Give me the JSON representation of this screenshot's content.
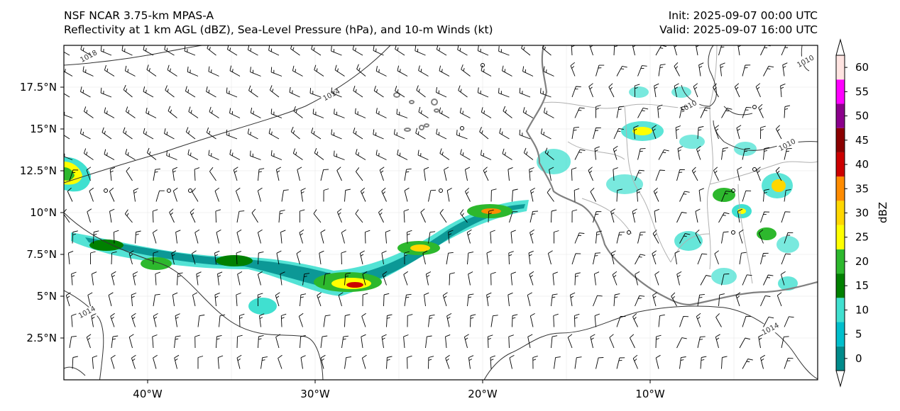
{
  "header": {
    "model_line": "NSF NCAR 3.75-km MPAS-A",
    "fields_line": "Reflectivity at 1 km AGL (dBZ), Sea-Level Pressure (hPa), and 10-m Winds (kt)",
    "init_line": "Init: 2025-09-07 00:00 UTC",
    "valid_line": "Valid: 2025-09-07 16:00 UTC"
  },
  "map": {
    "lon_labels": [
      "40°W",
      "30°W",
      "20°W",
      "10°W"
    ],
    "lat_labels": [
      "17.5°N",
      "15°N",
      "12.5°N",
      "10°N",
      "7.5°N",
      "5°N",
      "2.5°N"
    ],
    "lon_values": [
      -40,
      -30,
      -20,
      -10
    ],
    "lat_values": [
      17.5,
      15,
      12.5,
      10,
      7.5,
      5,
      2.5
    ],
    "extent": {
      "lon_min": -45,
      "lon_max": 0,
      "lat_min": 0,
      "lat_max": 20
    },
    "isobar_labels": [
      {
        "text": "1018",
        "lon": -43.5,
        "lat": 19.3
      },
      {
        "text": "1014",
        "lon": -29.0,
        "lat": 17.0
      },
      {
        "text": "1014",
        "lon": -43.6,
        "lat": 4.0
      },
      {
        "text": "1014",
        "lon": -2.8,
        "lat": 3.0
      },
      {
        "text": "1010",
        "lon": -7.7,
        "lat": 16.3
      },
      {
        "text": "1010",
        "lon": -1.8,
        "lat": 14.0
      },
      {
        "text": "1010",
        "lon": -0.7,
        "lat": 19.0
      }
    ],
    "colors": {
      "coastline": "#808080",
      "borders": "#b0b0b0",
      "isobar": "#333333",
      "barb": "#000000"
    }
  },
  "colorbar": {
    "label": "dBZ",
    "tick_labels": [
      "0",
      "5",
      "10",
      "15",
      "20",
      "25",
      "30",
      "35",
      "40",
      "45",
      "50",
      "55",
      "60"
    ],
    "bins": [
      {
        "from": 0,
        "to": 5,
        "color": "#008b8b"
      },
      {
        "from": 5,
        "to": 10,
        "color": "#00bfcc"
      },
      {
        "from": 10,
        "to": 15,
        "color": "#40e0d0"
      },
      {
        "from": 15,
        "to": 20,
        "color": "#008000"
      },
      {
        "from": 20,
        "to": 25,
        "color": "#2db82d"
      },
      {
        "from": 25,
        "to": 30,
        "color": "#ffff00"
      },
      {
        "from": 30,
        "to": 35,
        "color": "#ffd700"
      },
      {
        "from": 35,
        "to": 40,
        "color": "#ff8c00"
      },
      {
        "from": 40,
        "to": 45,
        "color": "#cc0000"
      },
      {
        "from": 45,
        "to": 50,
        "color": "#8b0000"
      },
      {
        "from": 50,
        "to": 55,
        "color": "#8b008b"
      },
      {
        "from": 55,
        "to": 60,
        "color": "#ff00ff"
      },
      {
        "from": 60,
        "to": 65,
        "color": "#ffe4e1"
      }
    ],
    "under_color": "#ffffff",
    "over_color": "#ffffff"
  }
}
